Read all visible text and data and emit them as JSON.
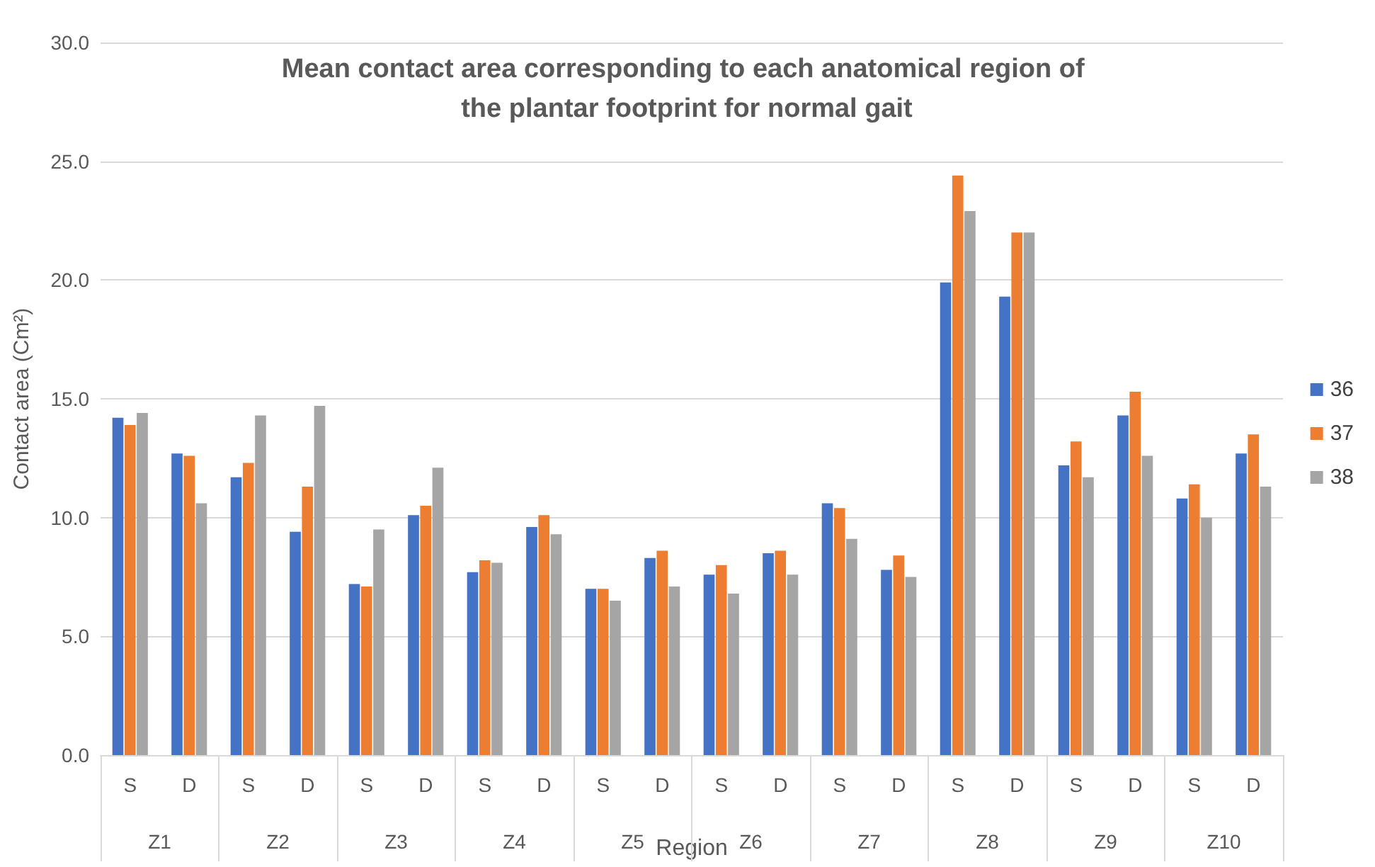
{
  "chart_data": {
    "type": "bar",
    "title": "Mean contact area corresponding to each anatomical region of the plantar footprint for normal gait",
    "xlabel": "Region",
    "ylabel": "Contact area (Cm²)",
    "categories": [
      "S",
      "D",
      "S",
      "D",
      "S",
      "D",
      "S",
      "D",
      "S",
      "D",
      "S",
      "D",
      "S",
      "D",
      "S",
      "D",
      "S",
      "D",
      "S",
      "D"
    ],
    "annotations": [
      "Z1",
      "Z2",
      "Z3",
      "Z4",
      "Z5",
      "Z6",
      "Z7",
      "Z8",
      "Z9",
      "Z10"
    ],
    "series": [
      {
        "name": "36",
        "color": "#4472c4",
        "values": [
          14.2,
          12.7,
          11.7,
          9.4,
          7.2,
          10.1,
          7.7,
          9.6,
          7.0,
          8.3,
          7.6,
          8.5,
          10.6,
          7.8,
          19.9,
          19.3,
          12.2,
          14.3,
          10.8,
          12.7
        ]
      },
      {
        "name": "37",
        "color": "#ed7d31",
        "values": [
          13.9,
          12.6,
          12.3,
          11.3,
          7.1,
          10.5,
          8.2,
          10.1,
          7.0,
          8.6,
          8.0,
          8.6,
          10.4,
          8.4,
          24.4,
          22.0,
          13.2,
          15.3,
          11.4,
          13.5
        ]
      },
      {
        "name": "38",
        "color": "#a5a5a5",
        "values": [
          14.4,
          10.6,
          14.3,
          14.7,
          9.5,
          12.1,
          8.1,
          9.3,
          6.5,
          7.1,
          6.8,
          7.6,
          9.1,
          7.5,
          22.9,
          22.0,
          11.7,
          12.6,
          10.0,
          11.3
        ]
      }
    ],
    "ylim": [
      0,
      30
    ],
    "yticks": [
      {
        "value": 0,
        "label": "0.0"
      },
      {
        "value": 5,
        "label": "5.0"
      },
      {
        "value": 10,
        "label": "10.0"
      },
      {
        "value": 15,
        "label": "15.0"
      },
      {
        "value": 20,
        "label": "20.0"
      },
      {
        "value": 25,
        "label": "25.0"
      },
      {
        "value": 30,
        "label": "30.0"
      }
    ],
    "grid": "y",
    "legend": "right"
  }
}
